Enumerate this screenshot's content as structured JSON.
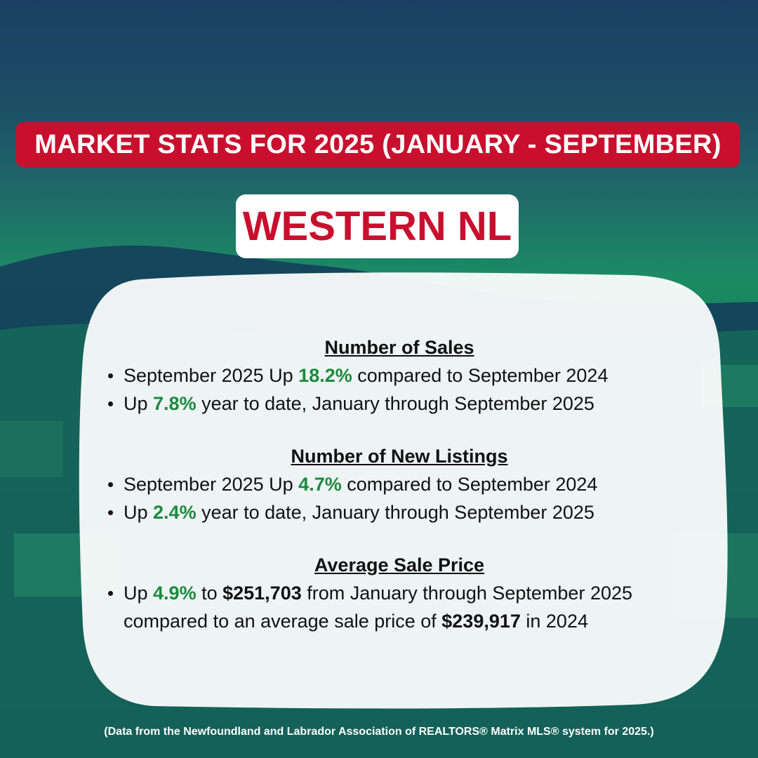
{
  "banner_title": "MARKET STATS FOR 2025 (JANUARY - SEPTEMBER)",
  "region": "WESTERN NL",
  "sections": {
    "sales": {
      "heading": "Number of Sales",
      "b1": {
        "pre": "September 2025 Up ",
        "pct": "18.2%",
        "post": " compared to September 2024"
      },
      "b2": {
        "pre": "Up ",
        "pct": "7.8%",
        "post": " year to date, January through September 2025"
      }
    },
    "listings": {
      "heading": "Number of New Listings",
      "b1": {
        "pre": "September 2025 Up ",
        "pct": "4.7%",
        "post": " compared to September 2024"
      },
      "b2": {
        "pre": "Up ",
        "pct": "2.4%",
        "post": " year to date, January through September 2025"
      }
    },
    "price": {
      "heading": "Average Sale Price",
      "b1": {
        "pre": "Up ",
        "pct": "4.9%",
        "mid": " to ",
        "price": "$251,703",
        "post": " from January through September 2025 compared to an average sale price of ",
        "prev_price": "$239,917",
        "end": " in 2024"
      }
    }
  },
  "footer": "(Data from the Newfoundland and Labrador Association of REALTORS® Matrix MLS® system for 2025.)",
  "colors": {
    "accent_red": "#c8102e",
    "stat_green": "#1b8a3e"
  }
}
